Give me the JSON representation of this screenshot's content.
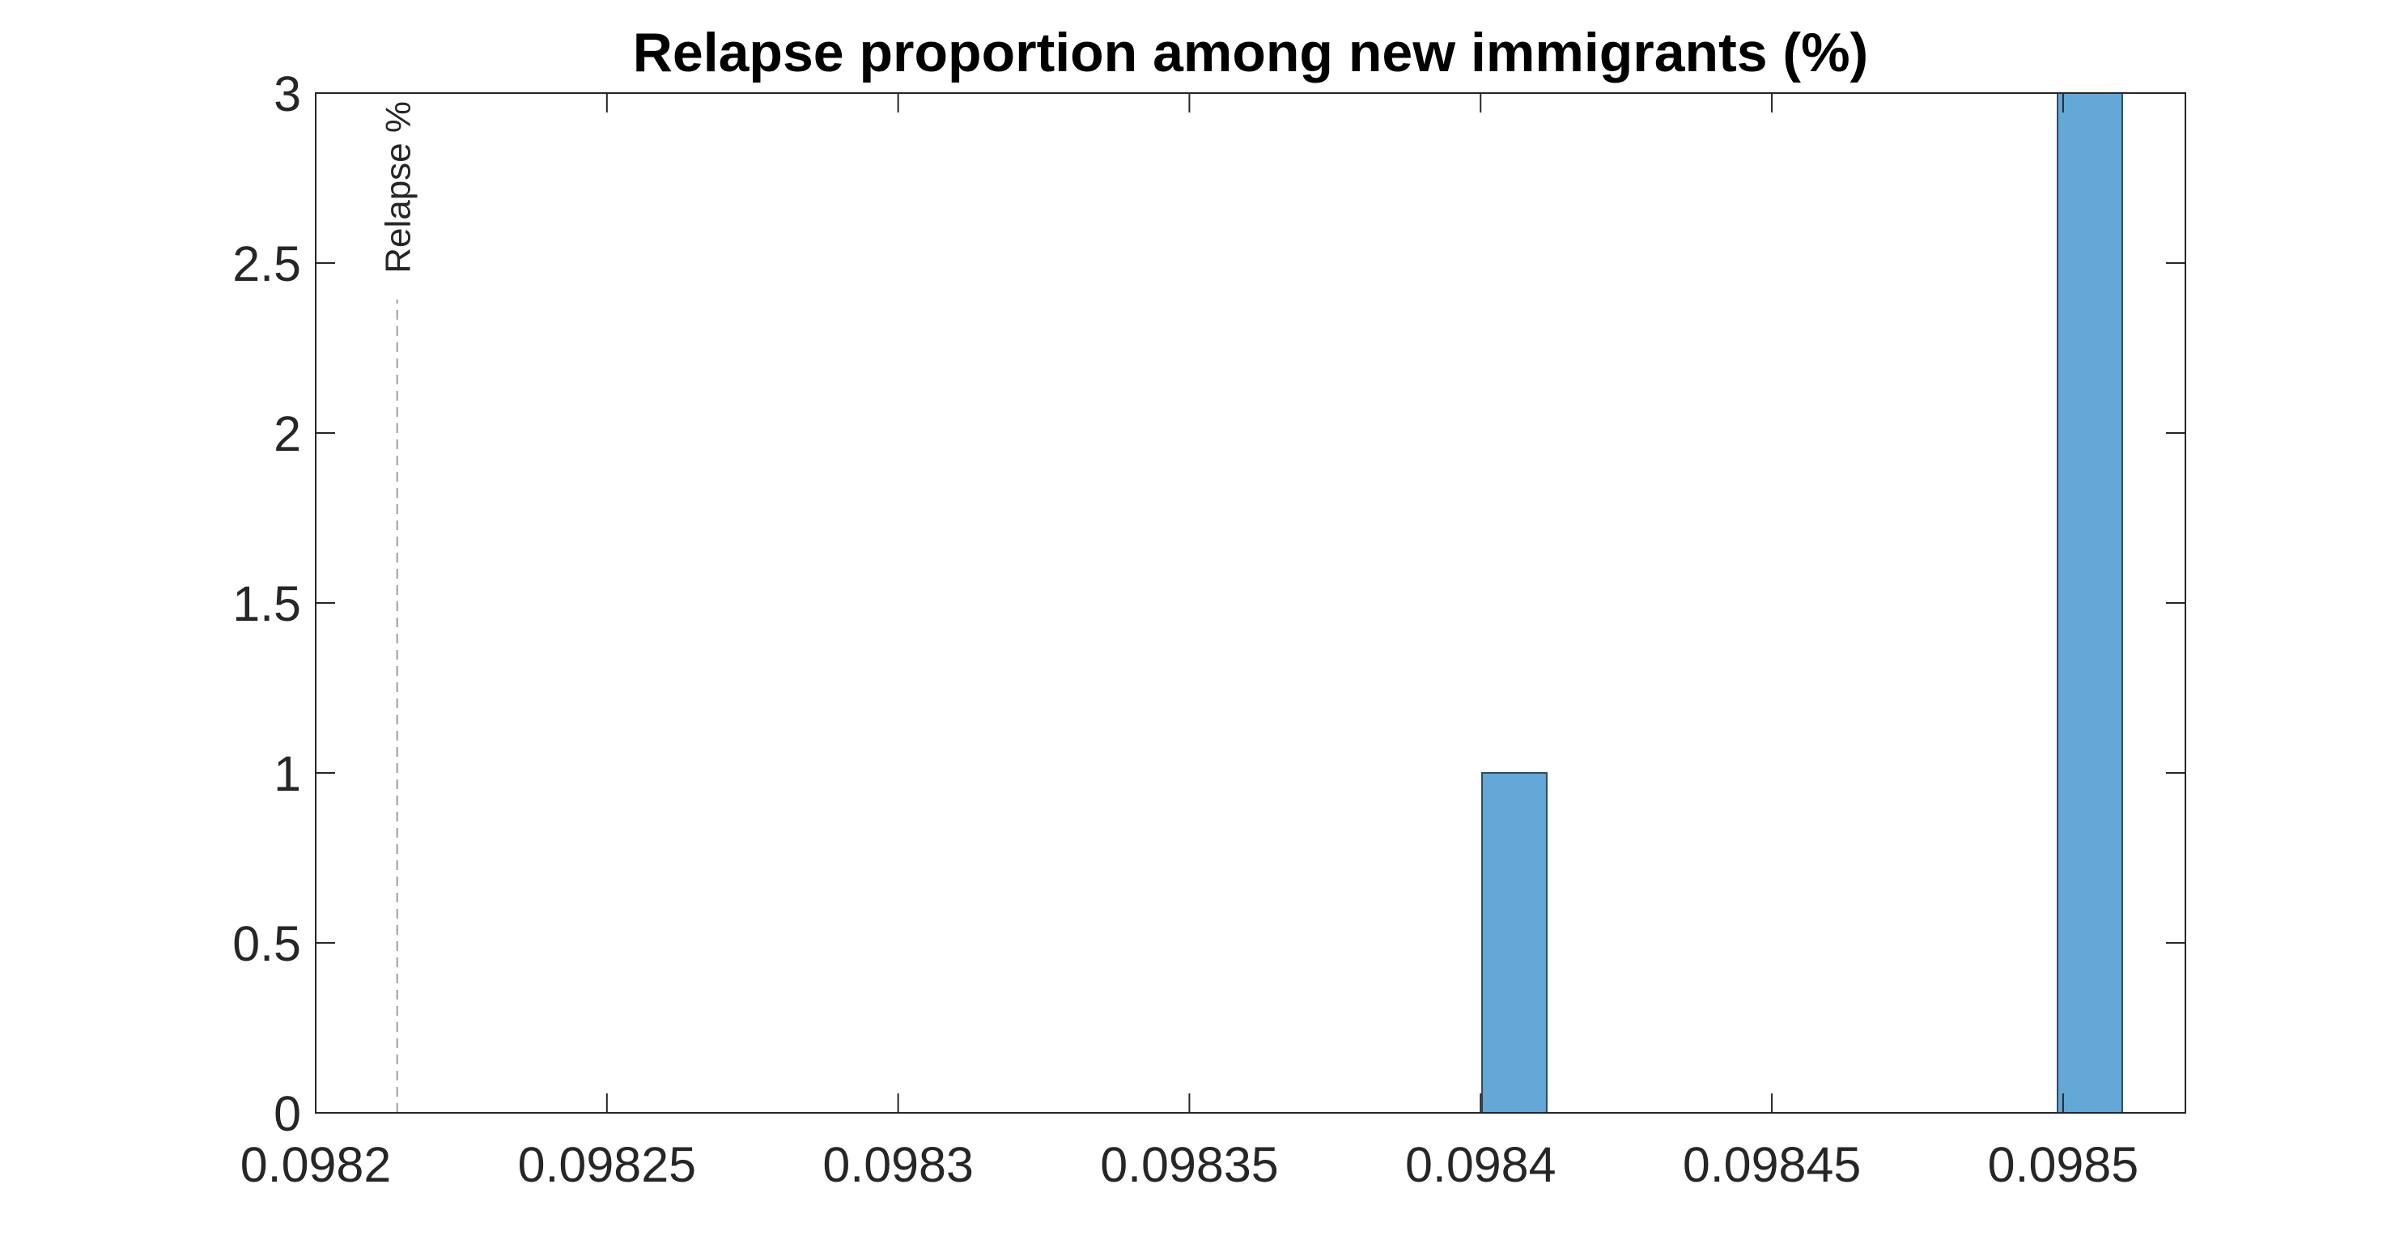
{
  "chart_data": {
    "type": "bar",
    "title": "Relapse proportion among new immigrants (%)",
    "xlabel": "",
    "ylabel": "",
    "xlim": [
      0.0982,
      0.098521
    ],
    "ylim": [
      0,
      3
    ],
    "x_ticks": [
      0.0982,
      0.09825,
      0.0983,
      0.09835,
      0.0984,
      0.09845,
      0.0985
    ],
    "x_tick_labels": [
      "0.0982",
      "0.09825",
      "0.0983",
      "0.09835",
      "0.0984",
      "0.09845",
      "0.0985"
    ],
    "y_ticks": [
      0,
      0.5,
      1,
      1.5,
      2,
      2.5,
      3
    ],
    "y_tick_labels": [
      "0",
      "0.5",
      "1",
      "1.5",
      "2",
      "2.5",
      "3"
    ],
    "bin_width": 1.11e-05,
    "bins": [
      {
        "x": 0.0984058,
        "value": 1
      },
      {
        "x": 0.0985046,
        "value": 3
      }
    ],
    "reference_line": {
      "x": 0.098214,
      "label": "Relapse %"
    },
    "grid": false,
    "legend": "none",
    "colors": {
      "bar_fill": "#64a8d8",
      "bar_edge": "#2b4a66",
      "axis": "#262626",
      "reference_line": "#b0b0b0"
    }
  }
}
